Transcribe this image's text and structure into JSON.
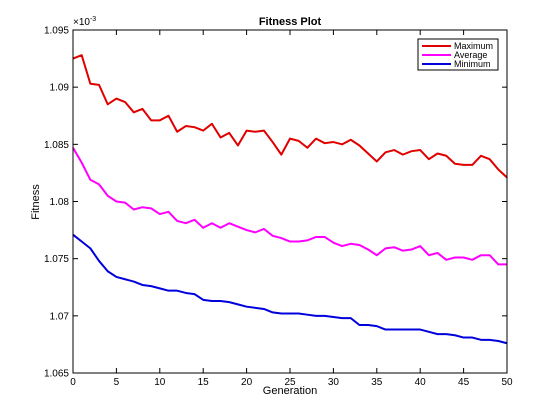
{
  "chart_data": {
    "type": "line",
    "title": "Fitness Plot",
    "xlabel": "Generation",
    "ylabel": "Fitness",
    "exponent_label": "×10",
    "exponent_power": "-3",
    "xlim": [
      0,
      50
    ],
    "ylim": [
      1.065,
      1.095
    ],
    "xticks": [
      0,
      5,
      10,
      15,
      20,
      25,
      30,
      35,
      40,
      45,
      50
    ],
    "xtick_labels": [
      "0",
      "5",
      "10",
      "15",
      "20",
      "25",
      "30",
      "35",
      "40",
      "45",
      "50"
    ],
    "yticks": [
      1.065,
      1.07,
      1.075,
      1.08,
      1.085,
      1.09,
      1.095
    ],
    "ytick_labels": [
      "1.065",
      "1.07",
      "1.075",
      "1.08",
      "1.085",
      "1.09",
      "1.095"
    ],
    "grid": false,
    "legend_position": "top-right",
    "x": [
      0,
      1,
      2,
      3,
      4,
      5,
      6,
      7,
      8,
      9,
      10,
      11,
      12,
      13,
      14,
      15,
      16,
      17,
      18,
      19,
      20,
      21,
      22,
      23,
      24,
      25,
      26,
      27,
      28,
      29,
      30,
      31,
      32,
      33,
      34,
      35,
      36,
      37,
      38,
      39,
      40,
      41,
      42,
      43,
      44,
      45,
      46,
      47,
      48,
      49,
      50
    ],
    "series": [
      {
        "name": "Maximum",
        "color": "#e00000",
        "values": [
          1.0925,
          1.0928,
          1.0903,
          1.0902,
          1.0885,
          1.089,
          1.0887,
          1.0878,
          1.0881,
          1.0871,
          1.0871,
          1.0875,
          1.0861,
          1.0866,
          1.0865,
          1.0862,
          1.0868,
          1.0856,
          1.086,
          1.0849,
          1.0862,
          1.0861,
          1.0862,
          1.0852,
          1.0841,
          1.0855,
          1.0853,
          1.0847,
          1.0855,
          1.0851,
          1.0852,
          1.085,
          1.0854,
          1.0849,
          1.0842,
          1.0835,
          1.0843,
          1.0845,
          1.0841,
          1.0844,
          1.0845,
          1.0837,
          1.0842,
          1.084,
          1.0833,
          1.0832,
          1.0832,
          1.084,
          1.0837,
          1.0828,
          1.0821
        ]
      },
      {
        "name": "Average",
        "color": "#ff00ff",
        "values": [
          1.0847,
          1.0834,
          1.0819,
          1.0815,
          1.0805,
          1.08,
          1.0799,
          1.0793,
          1.0795,
          1.0794,
          1.0789,
          1.0791,
          1.0783,
          1.0781,
          1.0784,
          1.0777,
          1.0781,
          1.0777,
          1.0781,
          1.0778,
          1.0775,
          1.0773,
          1.0776,
          1.077,
          1.0768,
          1.0765,
          1.0765,
          1.0766,
          1.0769,
          1.0769,
          1.0764,
          1.0761,
          1.0763,
          1.0762,
          1.0758,
          1.0753,
          1.0759,
          1.076,
          1.0757,
          1.0758,
          1.0761,
          1.0753,
          1.0755,
          1.0749,
          1.0751,
          1.0751,
          1.0749,
          1.0753,
          1.0753,
          1.0745,
          1.0745
        ]
      },
      {
        "name": "Minimum",
        "color": "#0000dd",
        "values": [
          1.0771,
          1.0765,
          1.0759,
          1.0748,
          1.0739,
          1.0734,
          1.0732,
          1.073,
          1.0727,
          1.0726,
          1.0724,
          1.0722,
          1.0722,
          1.072,
          1.0719,
          1.0714,
          1.0713,
          1.0713,
          1.0712,
          1.071,
          1.0708,
          1.0707,
          1.0706,
          1.0703,
          1.0702,
          1.0702,
          1.0702,
          1.0701,
          1.07,
          1.07,
          1.0699,
          1.0698,
          1.0698,
          1.0692,
          1.0692,
          1.0691,
          1.0688,
          1.0688,
          1.0688,
          1.0688,
          1.0688,
          1.0686,
          1.0684,
          1.0684,
          1.0683,
          1.0681,
          1.0681,
          1.0679,
          1.0679,
          1.0678,
          1.0676
        ]
      }
    ]
  }
}
